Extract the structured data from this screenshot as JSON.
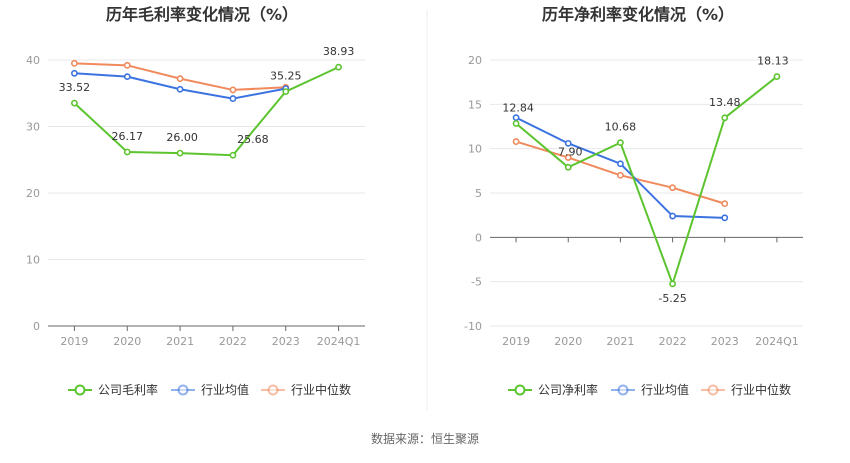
{
  "colors": {
    "company": "#5cc42f",
    "industry_avg": "#3b73e0",
    "industry_median": "#f08a5d",
    "grid": "#e8e8e8",
    "axis": "#666666"
  },
  "source_text": "数据来源：恒生聚源",
  "chart_data": [
    {
      "type": "line",
      "title": "历年毛利率变化情况（%）",
      "categories": [
        "2019",
        "2020",
        "2021",
        "2022",
        "2023",
        "2024Q1"
      ],
      "ylim": [
        0,
        40
      ],
      "yticks": [
        "0",
        "10",
        "20",
        "30",
        "40"
      ],
      "grid": true,
      "legend_position": "bottom",
      "series": [
        {
          "name": "公司毛利率",
          "key": "company",
          "values": [
            33.52,
            26.17,
            26.0,
            25.68,
            35.25,
            38.93
          ],
          "labels": [
            "33.52",
            "26.17",
            "26.00",
            "25.68",
            "35.25",
            "38.93"
          ]
        },
        {
          "name": "行业均值",
          "key": "industry_avg",
          "values": [
            38.0,
            37.5,
            35.6,
            34.2,
            35.7,
            null
          ]
        },
        {
          "name": "行业中位数",
          "key": "industry_median",
          "values": [
            39.5,
            39.2,
            37.2,
            35.5,
            35.9,
            null
          ]
        }
      ]
    },
    {
      "type": "line",
      "title": "历年净利率变化情况（%）",
      "categories": [
        "2019",
        "2020",
        "2021",
        "2022",
        "2023",
        "2024Q1"
      ],
      "ylim": [
        -10,
        20
      ],
      "yticks": [
        "-10",
        "-5",
        "0",
        "5",
        "10",
        "15",
        "20"
      ],
      "grid": true,
      "legend_position": "bottom",
      "series": [
        {
          "name": "公司净利率",
          "key": "company",
          "values": [
            12.84,
            7.9,
            10.68,
            -5.25,
            13.48,
            18.13
          ],
          "labels": [
            "12.84",
            "7.90",
            "10.68",
            "-5.25",
            "13.48",
            "18.13"
          ]
        },
        {
          "name": "行业均值",
          "key": "industry_avg",
          "values": [
            13.5,
            10.6,
            8.3,
            2.4,
            2.2,
            null
          ]
        },
        {
          "name": "行业中位数",
          "key": "industry_median",
          "values": [
            10.8,
            9.0,
            7.0,
            5.6,
            3.8,
            null
          ]
        }
      ]
    }
  ]
}
